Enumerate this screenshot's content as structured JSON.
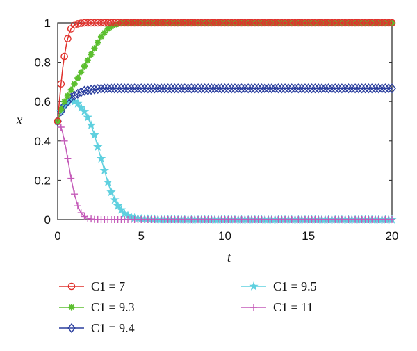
{
  "chart_data": {
    "type": "line",
    "xlabel": "t",
    "ylabel": "x",
    "xlim": [
      0,
      20
    ],
    "ylim": [
      0,
      1
    ],
    "xticks": [
      "0",
      "5",
      "10",
      "15",
      "20"
    ],
    "yticks": [
      "0",
      "0.2",
      "0.4",
      "0.6",
      "0.8",
      "1"
    ],
    "grid": false,
    "legend_position": "bottom",
    "series": [
      {
        "name": "C1 = 7",
        "color": "#e0302b",
        "marker": "circle",
        "x": [
          0,
          0.1,
          0.2,
          0.3,
          0.4,
          0.5,
          0.6,
          0.7,
          0.8,
          0.9,
          1.0,
          1.2,
          1.4,
          1.6,
          1.8,
          2.0,
          2.5,
          3.0,
          4,
          5,
          6,
          8,
          10,
          12,
          14,
          16,
          18,
          20
        ],
        "y": [
          0.5,
          0.6,
          0.69,
          0.77,
          0.83,
          0.88,
          0.92,
          0.95,
          0.97,
          0.98,
          0.99,
          0.995,
          0.998,
          1,
          1,
          1,
          1,
          1,
          1,
          1,
          1,
          1,
          1,
          1,
          1,
          1,
          1,
          1
        ]
      },
      {
        "name": "C1 = 9.3",
        "color": "#5cbf2f",
        "marker": "star",
        "x": [
          0,
          0.2,
          0.4,
          0.6,
          0.8,
          1.0,
          1.2,
          1.4,
          1.6,
          1.8,
          2.0,
          2.2,
          2.4,
          2.6,
          2.8,
          3.0,
          3.2,
          3.4,
          3.6,
          3.8,
          4.0,
          4.5,
          5,
          6,
          8,
          10,
          12,
          14,
          16,
          18,
          20
        ],
        "y": [
          0.5,
          0.56,
          0.6,
          0.63,
          0.66,
          0.69,
          0.72,
          0.75,
          0.78,
          0.81,
          0.84,
          0.87,
          0.9,
          0.93,
          0.95,
          0.97,
          0.98,
          0.99,
          0.995,
          1,
          1,
          1,
          1,
          1,
          1,
          1,
          1,
          1,
          1,
          1,
          1
        ]
      },
      {
        "name": "C1 = 9.4",
        "color": "#2b3f9e",
        "marker": "diamond",
        "x": [
          0,
          0.2,
          0.4,
          0.6,
          0.8,
          1.0,
          1.3,
          1.6,
          2.0,
          2.5,
          3.0,
          4,
          5,
          6,
          8,
          10,
          12,
          14,
          16,
          18,
          20
        ],
        "y": [
          0.5,
          0.55,
          0.58,
          0.6,
          0.62,
          0.63,
          0.645,
          0.655,
          0.66,
          0.665,
          0.667,
          0.667,
          0.667,
          0.667,
          0.667,
          0.667,
          0.667,
          0.667,
          0.667,
          0.667,
          0.667
        ]
      },
      {
        "name": "C1 = 9.5",
        "color": "#5fd0df",
        "marker": "star5",
        "x": [
          0,
          0.2,
          0.4,
          0.6,
          0.8,
          1.0,
          1.2,
          1.4,
          1.6,
          1.8,
          2.0,
          2.2,
          2.4,
          2.6,
          2.8,
          3.0,
          3.2,
          3.4,
          3.6,
          3.8,
          4.0,
          4.3,
          4.6,
          5,
          6,
          8,
          10,
          12,
          14,
          16,
          18,
          20
        ],
        "y": [
          0.5,
          0.55,
          0.58,
          0.6,
          0.605,
          0.6,
          0.59,
          0.57,
          0.55,
          0.52,
          0.48,
          0.43,
          0.37,
          0.31,
          0.25,
          0.19,
          0.14,
          0.1,
          0.07,
          0.05,
          0.03,
          0.015,
          0.008,
          0.004,
          0.001,
          0,
          0,
          0,
          0,
          0,
          0,
          0
        ]
      },
      {
        "name": "C1 = 11",
        "color": "#c45ab8",
        "marker": "plus",
        "x": [
          0,
          0.1,
          0.2,
          0.3,
          0.4,
          0.5,
          0.6,
          0.7,
          0.8,
          0.9,
          1.0,
          1.1,
          1.2,
          1.3,
          1.4,
          1.5,
          1.6,
          1.7,
          1.8,
          2.0,
          2.2,
          2.5,
          3.0,
          4,
          5,
          6,
          8,
          10,
          12,
          14,
          16,
          18,
          20
        ],
        "y": [
          0.5,
          0.49,
          0.47,
          0.44,
          0.4,
          0.36,
          0.31,
          0.26,
          0.21,
          0.17,
          0.13,
          0.1,
          0.07,
          0.05,
          0.035,
          0.024,
          0.016,
          0.01,
          0.007,
          0.003,
          0.001,
          0,
          0,
          0,
          0,
          0,
          0,
          0,
          0,
          0,
          0,
          0,
          0
        ]
      }
    ]
  }
}
